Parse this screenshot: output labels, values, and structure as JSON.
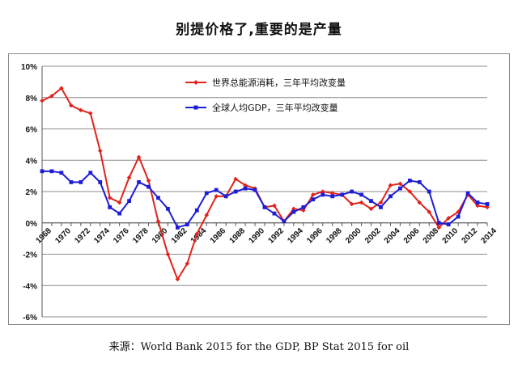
{
  "title": "别提价格了,重要的是产量",
  "source": "来源：World Bank 2015 for the GDP, BP Stat 2015 for oil",
  "chart_data": {
    "type": "line",
    "title": "别提价格了,重要的是产量",
    "xlabel": "",
    "ylabel": "",
    "x": [
      1968,
      1969,
      1970,
      1971,
      1972,
      1973,
      1974,
      1975,
      1976,
      1977,
      1978,
      1979,
      1980,
      1981,
      1982,
      1983,
      1984,
      1985,
      1986,
      1987,
      1988,
      1989,
      1990,
      1991,
      1992,
      1993,
      1994,
      1995,
      1996,
      1997,
      1998,
      1999,
      2000,
      2001,
      2002,
      2003,
      2004,
      2005,
      2006,
      2007,
      2008,
      2009,
      2010,
      2011,
      2012,
      2013,
      2014
    ],
    "x_tick_labels": [
      "1968",
      "1970",
      "1972",
      "1974",
      "1976",
      "1978",
      "1980",
      "1982",
      "1984",
      "1986",
      "1988",
      "1990",
      "1992",
      "1994",
      "1996",
      "1998",
      "2000",
      "2002",
      "2004",
      "2006",
      "2008",
      "2010",
      "2012",
      "2014"
    ],
    "y_tick_labels": [
      "10%",
      "8%",
      "6%",
      "4%",
      "2%",
      "0%",
      "-2%",
      "-4%",
      "-6%"
    ],
    "ylim": [
      -6,
      10
    ],
    "grid": true,
    "legend_position": "top-center",
    "series": [
      {
        "name": "世界总能源消耗，三年平均改变量",
        "color": "#e0231b",
        "values": [
          7.8,
          8.1,
          8.6,
          7.5,
          7.2,
          7.0,
          4.6,
          1.6,
          1.3,
          2.9,
          4.2,
          2.7,
          0.1,
          -2.0,
          -3.6,
          -2.6,
          -0.7,
          0.5,
          1.7,
          1.7,
          2.8,
          2.4,
          2.2,
          1.0,
          1.1,
          0.1,
          0.9,
          0.8,
          1.8,
          2.0,
          1.9,
          1.8,
          1.2,
          1.3,
          0.9,
          1.3,
          2.4,
          2.5,
          2.0,
          1.3,
          0.7,
          -0.3,
          0.3,
          0.7,
          1.8,
          1.1,
          1.0
        ]
      },
      {
        "name": "全球人均GDP，三年平均改变量",
        "color": "#1d1dd6",
        "values": [
          3.3,
          3.3,
          3.2,
          2.6,
          2.6,
          3.2,
          2.6,
          1.0,
          0.6,
          1.4,
          2.6,
          2.3,
          1.6,
          0.9,
          -0.3,
          -0.1,
          0.8,
          1.9,
          2.1,
          1.7,
          2.0,
          2.2,
          2.1,
          1.0,
          0.6,
          0.1,
          0.7,
          1.0,
          1.5,
          1.8,
          1.7,
          1.8,
          2.0,
          1.8,
          1.4,
          1.0,
          1.7,
          2.2,
          2.7,
          2.6,
          2.0,
          0.0,
          -0.1,
          0.4,
          1.9,
          1.3,
          1.2
        ]
      }
    ]
  }
}
